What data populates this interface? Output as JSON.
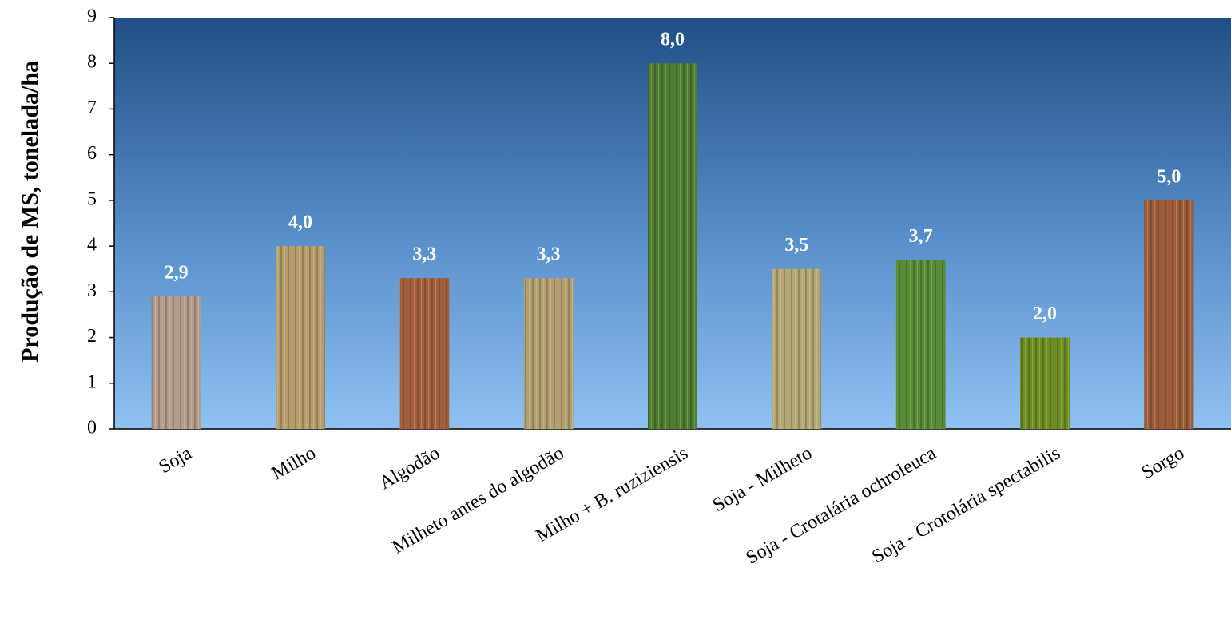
{
  "chart_data": {
    "type": "bar",
    "y_label": "Produção de MS, tonelada/ha",
    "categories": [
      "Soja",
      "Milho",
      "Algodão",
      "Milheto antes do algodão",
      "Milho + B. ruziziensis",
      "Soja - Milheto",
      "Soja - Crotalária ochroleuca",
      "Soja - Crotolária spectabilis",
      "Sorgo"
    ],
    "values": [
      2.9,
      4.0,
      3.3,
      3.3,
      8.0,
      3.5,
      3.7,
      2.0,
      5.0
    ],
    "value_labels": [
      "2,9",
      "4,0",
      "3,3",
      "3,3",
      "8,0",
      "3,5",
      "3,7",
      "2,0",
      "5,0"
    ],
    "colors": [
      "#b39c8a",
      "#b59d6c",
      "#a3603d",
      "#b29f72",
      "#4e7d2f",
      "#b3a875",
      "#5a8b36",
      "#6f8d22",
      "#9c5b36"
    ],
    "ylim": [
      0,
      9
    ],
    "yticks": [
      0,
      1,
      2,
      3,
      4,
      5,
      6,
      7,
      8,
      9
    ]
  }
}
